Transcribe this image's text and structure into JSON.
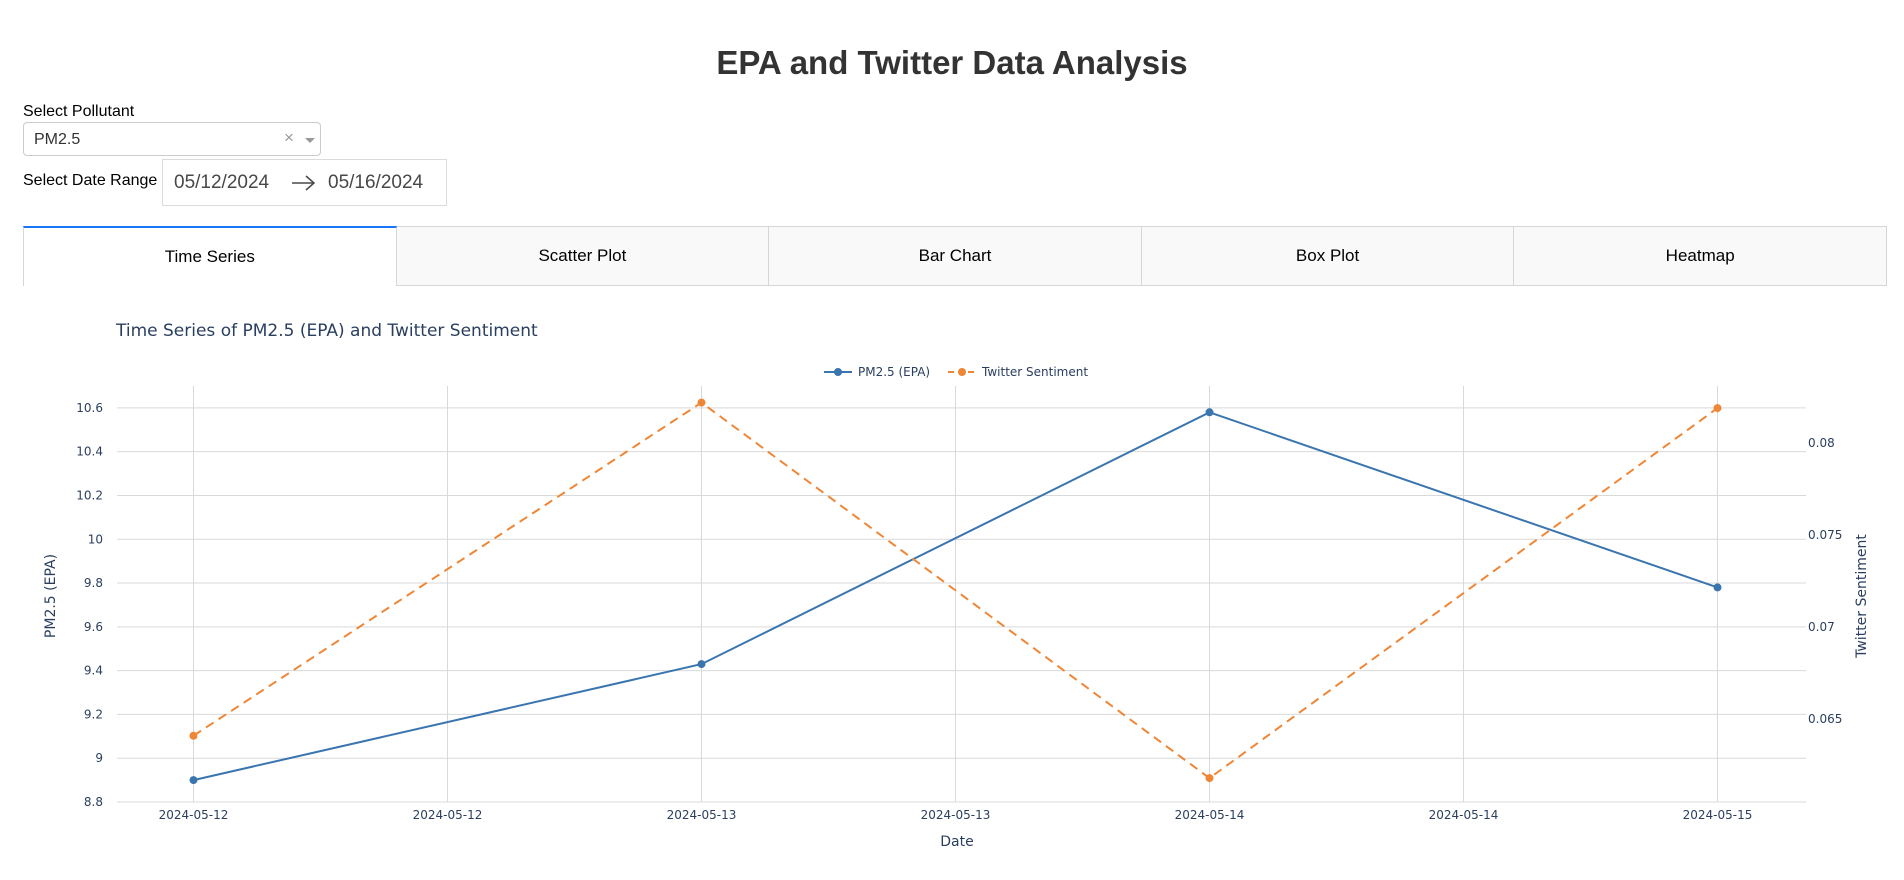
{
  "page": {
    "title": "EPA and Twitter Data Analysis"
  },
  "controls": {
    "pollutant_label": "Select Pollutant",
    "pollutant_value": "PM2.5",
    "clear_glyph": "×",
    "date_range_label": "Select Date Range",
    "start_date": "05/12/2024",
    "end_date": "05/16/2024"
  },
  "tabs": [
    {
      "label": "Time Series",
      "active": true
    },
    {
      "label": "Scatter Plot",
      "active": false
    },
    {
      "label": "Bar Chart",
      "active": false
    },
    {
      "label": "Box Plot",
      "active": false
    },
    {
      "label": "Heatmap",
      "active": false
    }
  ],
  "chart_data": {
    "type": "line",
    "title": "Time Series of PM2.5 (EPA) and Twitter Sentiment",
    "xlabel": "Date",
    "ylabel": "PM2.5 (EPA)",
    "y2label": "Twitter Sentiment",
    "x": [
      "2024-05-12",
      "2024-05-13",
      "2024-05-14",
      "2024-05-15"
    ],
    "xticks": [
      "2024-05-12",
      "2024-05-12",
      "2024-05-13",
      "2024-05-13",
      "2024-05-14",
      "2024-05-14",
      "2024-05-15"
    ],
    "ylim": [
      8.8,
      10.7
    ],
    "yticks": [
      8.8,
      9,
      9.2,
      9.4,
      9.6,
      9.8,
      10,
      10.2,
      10.4,
      10.6
    ],
    "y2lim": [
      0.0605,
      0.0831
    ],
    "y2ticks": [
      0.065,
      0.07,
      0.075,
      0.08
    ],
    "grid": true,
    "legend_position": "top-center",
    "series": [
      {
        "name": "PM2.5 (EPA)",
        "axis": "y",
        "color": "#3b75af",
        "dash": "solid",
        "values": [
          8.9,
          9.43,
          10.58,
          9.78
        ]
      },
      {
        "name": "Twitter Sentiment",
        "axis": "y2",
        "color": "#ef8636",
        "dash": "dash",
        "values": [
          0.0641,
          0.0822,
          0.0618,
          0.0819
        ]
      }
    ]
  }
}
